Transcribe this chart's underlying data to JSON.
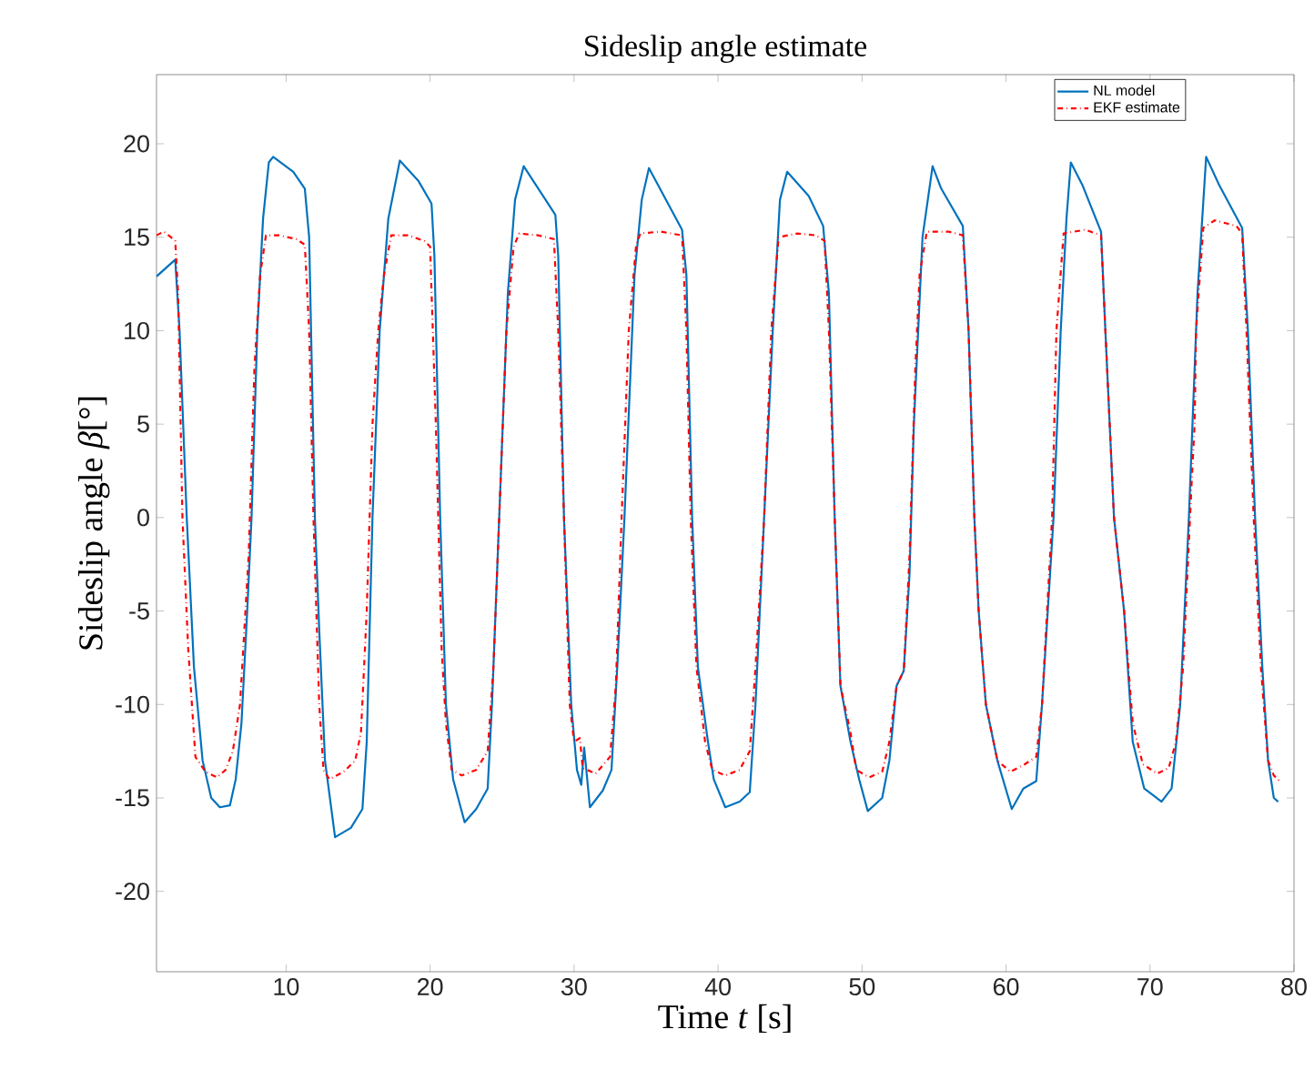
{
  "chart_data": {
    "type": "line",
    "title": "Sideslip angle estimate",
    "xlabel": "Time *t* [s]",
    "ylabel": "Sideslip angle *β*[°]",
    "xlim": [
      1,
      80
    ],
    "ylim": [
      -24.3,
      23.7
    ],
    "xticks": [
      10,
      20,
      30,
      40,
      50,
      60,
      70,
      80
    ],
    "yticks": [
      -20,
      -15,
      -10,
      -5,
      0,
      5,
      10,
      15,
      20
    ],
    "grid": false,
    "legend": "top right",
    "marker": "none",
    "series": [
      {
        "name": "NL model",
        "color": "#0072bd",
        "line_style": "solid",
        "x": [
          1,
          2.3,
          2.6,
          3.1,
          3.6,
          4.2,
          4.8,
          5.4,
          6.1,
          6.5,
          6.9,
          7.3,
          7.6,
          8.0,
          8.4,
          8.8,
          9.1,
          10.5,
          11.3,
          11.6,
          12.0,
          12.3,
          12.7,
          13.4,
          14.5,
          15.3,
          15.6,
          16.0,
          16.5,
          17.1,
          17.9,
          19.2,
          20.1,
          20.3,
          20.7,
          21.1,
          21.6,
          22.4,
          23.2,
          24.0,
          24.3,
          24.8,
          25.4,
          25.9,
          26.5,
          28.7,
          28.9,
          29.3,
          29.8,
          30.2,
          30.5,
          30.7,
          31.1,
          32.0,
          32.6,
          33.0,
          33.5,
          34.2,
          34.7,
          35.2,
          37.5,
          37.8,
          38.2,
          38.6,
          39.3,
          39.7,
          40.5,
          41.5,
          42.2,
          42.6,
          43.2,
          43.8,
          44.3,
          44.8,
          46.3,
          47.3,
          47.7,
          48.1,
          48.5,
          49.2,
          49.8,
          50.4,
          51.4,
          51.9,
          52.4,
          52.9,
          53.3,
          53.6,
          54.2,
          54.9,
          55.5,
          57.0,
          57.4,
          57.8,
          58.1,
          58.6,
          59.4,
          60.4,
          61.2,
          62.1,
          62.5,
          63.3,
          63.8,
          64.2,
          64.5,
          65.3,
          66.6,
          66.9,
          67.5,
          68.2,
          68.8,
          69.6,
          70.8,
          71.5,
          72.1,
          72.7,
          73.3,
          73.9,
          74.8,
          76.4,
          76.8,
          77.3,
          77.8,
          78.2,
          78.6,
          78.9
        ],
        "values": [
          12.9,
          13.8,
          10,
          0,
          -8,
          -13,
          -15,
          -15.5,
          -15.4,
          -14,
          -11,
          -5,
          0,
          10,
          16,
          19,
          19.3,
          18.5,
          17.6,
          15,
          0,
          -6,
          -13,
          -17.1,
          -16.6,
          -15.6,
          -12,
          0,
          10,
          16,
          19.1,
          18,
          16.8,
          14,
          0,
          -10,
          -14,
          -16.3,
          -15.6,
          -14.5,
          -10,
          0,
          12,
          17,
          18.8,
          16.2,
          14,
          0,
          -10,
          -13.5,
          -14.3,
          -12.3,
          -15.5,
          -14.6,
          -13.5,
          -8,
          0,
          13,
          17,
          18.7,
          15.4,
          13,
          0,
          -8,
          -12,
          -14,
          -15.5,
          -15.2,
          -14.7,
          -10,
          0,
          10,
          17,
          18.5,
          17.2,
          15.6,
          12,
          0,
          -9,
          -12,
          -14,
          -15.7,
          -15,
          -13,
          -9,
          -8.2,
          -3,
          5,
          15,
          18.8,
          17.6,
          15.6,
          10,
          0,
          -5,
          -10,
          -13,
          -15.6,
          -14.5,
          -14.1,
          -10,
          0,
          10,
          16,
          19,
          17.8,
          15.3,
          10,
          0,
          -5,
          -12,
          -14.5,
          -15.2,
          -14.5,
          -10,
          0,
          12,
          19.3,
          17.8,
          15.5,
          10,
          0,
          -8,
          -13,
          -15,
          -15.2
        ]
      },
      {
        "name": "EKF estimate",
        "color": "#ff0000",
        "line_style": "dashdot",
        "x": [
          1,
          1.5,
          2.0,
          2.3,
          2.5,
          2.8,
          3.2,
          3.7,
          4.4,
          5.2,
          5.8,
          6.3,
          6.8,
          7.4,
          7.8,
          8.2,
          8.6,
          9.5,
          10.7,
          11.3,
          11.6,
          11.9,
          12.3,
          12.6,
          13.0,
          14.0,
          14.8,
          15.2,
          15.6,
          16.0,
          16.4,
          16.8,
          17.3,
          18.5,
          19.6,
          20.0,
          20.4,
          20.8,
          21.1,
          21.5,
          22.2,
          23.2,
          24.0,
          24.4,
          24.8,
          25.3,
          25.8,
          26.2,
          27.5,
          28.6,
          28.9,
          29.3,
          29.7,
          30.0,
          30.4,
          30.6,
          31.5,
          32.5,
          32.9,
          33.3,
          33.8,
          34.3,
          34.6,
          36.0,
          37.5,
          37.8,
          38.1,
          38.5,
          39.1,
          39.6,
          40.5,
          41.5,
          42.2,
          42.6,
          43.2,
          43.7,
          44.2,
          45.5,
          46.8,
          47.4,
          47.7,
          48.1,
          48.5,
          49.2,
          49.6,
          50.5,
          51.4,
          51.9,
          52.4,
          52.9,
          53.3,
          53.7,
          54.0,
          54.5,
          56.0,
          57.0,
          57.4,
          57.8,
          58.1,
          58.6,
          59.4,
          60.3,
          61.3,
          62.1,
          62.5,
          63.2,
          63.5,
          64.0,
          65.5,
          66.6,
          66.9,
          67.5,
          68.2,
          68.8,
          69.5,
          70.5,
          71.3,
          71.8,
          72.3,
          72.9,
          73.1,
          73.2,
          73.7,
          74.5,
          76.0,
          76.4,
          76.7,
          77.2,
          77.7,
          78.2,
          78.6,
          79.0
        ],
        "values": [
          15.1,
          15.3,
          15.0,
          14.8,
          12,
          0,
          -7,
          -12.8,
          -13.6,
          -13.9,
          -13.5,
          -12.5,
          -10,
          -2,
          8,
          13,
          15.1,
          15.1,
          14.9,
          14.6,
          10,
          0,
          -10,
          -13.5,
          -14,
          -13.6,
          -13,
          -11.5,
          -5,
          5,
          10,
          13,
          15.1,
          15.1,
          14.8,
          14.5,
          5,
          -7,
          -11,
          -13.5,
          -13.8,
          -13.5,
          -12.5,
          -8,
          0,
          10,
          14.5,
          15.2,
          15.1,
          14.9,
          10,
          0,
          -10,
          -12,
          -11.8,
          -13.4,
          -13.7,
          -12.8,
          -9,
          0,
          10,
          14.5,
          15.2,
          15.3,
          15.1,
          10,
          0,
          -8,
          -12,
          -13.5,
          -13.8,
          -13.5,
          -12.5,
          -8,
          0,
          10,
          15,
          15.2,
          15.1,
          14.8,
          10,
          0,
          -9,
          -11.5,
          -13.5,
          -13.9,
          -13.6,
          -12,
          -9,
          -8.2,
          -2,
          8,
          13,
          15.3,
          15.3,
          15.1,
          10,
          0,
          -5,
          -10,
          -13,
          -13.6,
          -13.2,
          -12.8,
          -10,
          0,
          10,
          15.2,
          15.4,
          15.1,
          10,
          0,
          -5,
          -11,
          -13.2,
          -13.7,
          -13.4,
          -12,
          -8,
          2,
          5,
          10,
          15.5,
          15.9,
          15.6,
          15.2,
          10,
          0,
          -8,
          -13,
          -13.8,
          -14.1
        ]
      }
    ]
  }
}
